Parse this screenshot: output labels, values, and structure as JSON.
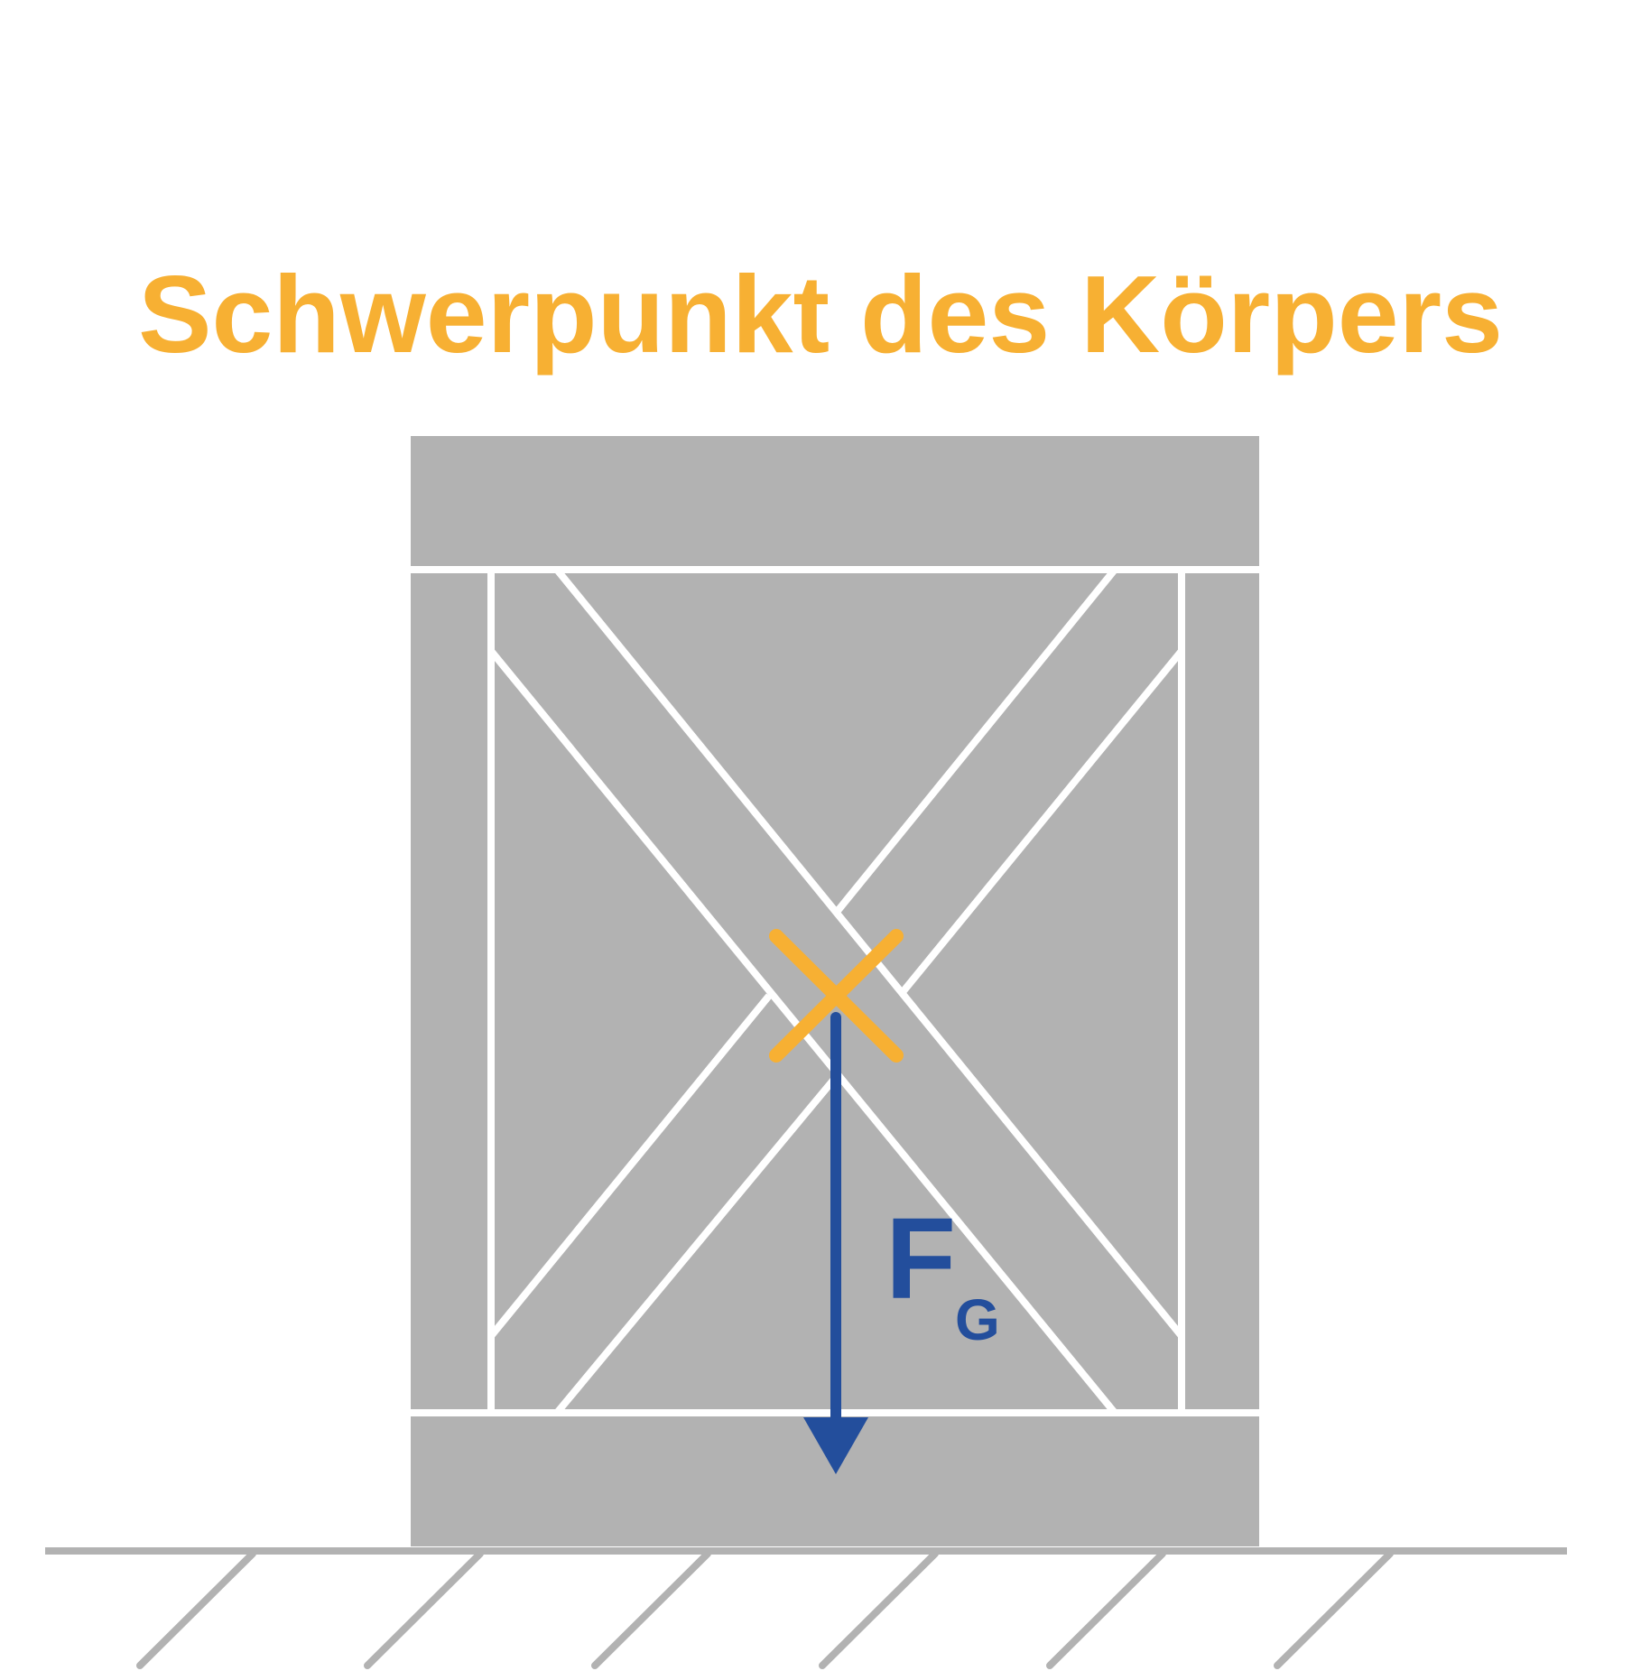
{
  "title": "Schwerpunkt des Körpers",
  "force_label": {
    "symbol": "F",
    "subscript": "G"
  },
  "colors": {
    "accent_orange": "#F7B033",
    "force_blue": "#234E9C",
    "crate_gray": "#B2B2B2",
    "ground_gray": "#B2B2B2",
    "outline_white": "#FFFFFF"
  },
  "icons": {
    "center_of_mass_marker": "cross-mark",
    "force_arrow": "arrow-down",
    "ground": "hatched-ground"
  }
}
